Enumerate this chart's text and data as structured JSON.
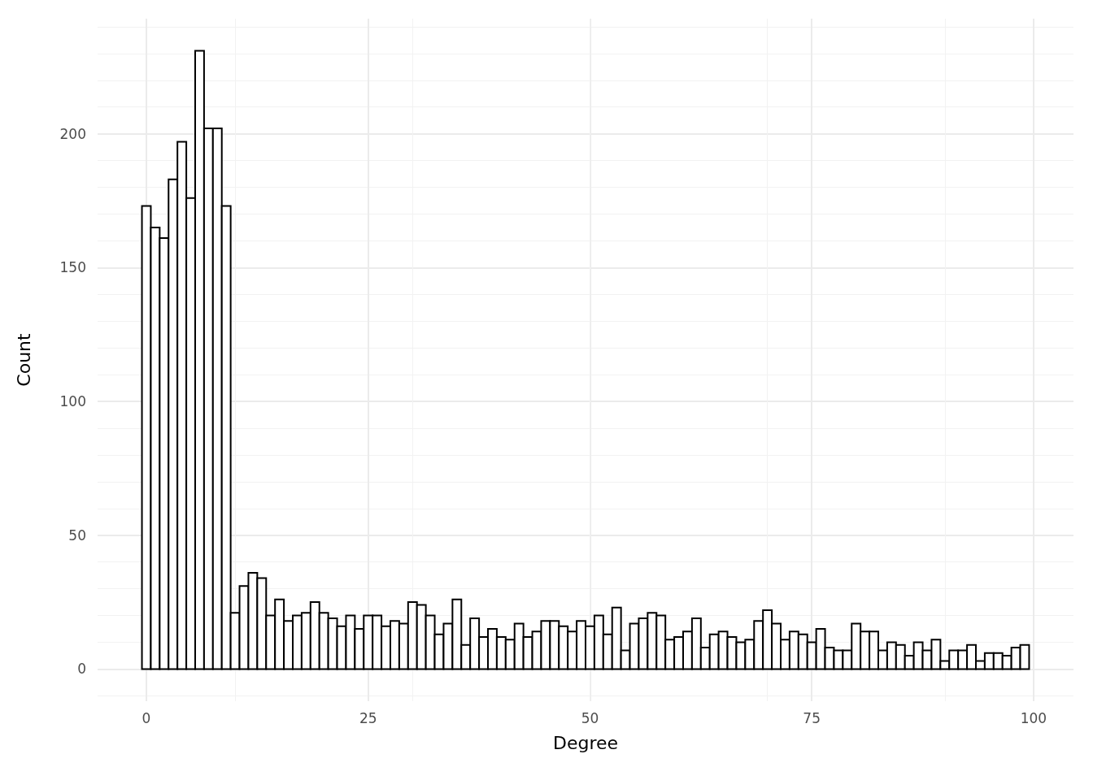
{
  "chart_data": {
    "type": "histogram",
    "xlabel": "Degree",
    "ylabel": "Count",
    "bins": [
      -0.5,
      0.5,
      1.5,
      2.5,
      3.5,
      4.5,
      5.5,
      6.5,
      7.5,
      8.5,
      9.5,
      10.5,
      11.5,
      12.5,
      13.5,
      14.5,
      15.5,
      16.5,
      17.5,
      18.5,
      19.5,
      20.5,
      21.5,
      22.5,
      23.5,
      24.5,
      25.5,
      26.5,
      27.5,
      28.5,
      29.5,
      30.5,
      31.5,
      32.5,
      33.5,
      34.5,
      35.5,
      36.5,
      37.5,
      38.5,
      39.5,
      40.5,
      41.5,
      42.5,
      43.5,
      44.5,
      45.5,
      46.5,
      47.5,
      48.5,
      49.5,
      50.5,
      51.5,
      52.5,
      53.5,
      54.5,
      55.5,
      56.5,
      57.5,
      58.5,
      59.5,
      60.5,
      61.5,
      62.5,
      63.5,
      64.5,
      65.5,
      66.5,
      67.5,
      68.5,
      69.5,
      70.5,
      71.5,
      72.5,
      73.5,
      74.5,
      75.5,
      76.5,
      77.5,
      78.5,
      79.5,
      80.5,
      81.5,
      82.5,
      83.5,
      84.5,
      85.5,
      86.5,
      87.5,
      88.5,
      89.5,
      90.5,
      91.5,
      92.5,
      93.5,
      94.5,
      95.5,
      96.5,
      97.5,
      98.5,
      99.5
    ],
    "values": [
      173,
      165,
      161,
      183,
      197,
      176,
      231,
      202,
      202,
      173,
      21,
      31,
      36,
      34,
      20,
      26,
      18,
      20,
      21,
      25,
      21,
      19,
      16,
      20,
      15,
      20,
      20,
      16,
      18,
      17,
      25,
      24,
      20,
      13,
      17,
      26,
      9,
      19,
      12,
      15,
      12,
      11,
      17,
      12,
      14,
      18,
      18,
      16,
      14,
      18,
      16,
      20,
      13,
      23,
      7,
      17,
      19,
      21,
      20,
      11,
      12,
      14,
      19,
      8,
      13,
      14,
      12,
      10,
      11,
      18,
      22,
      17,
      11,
      14,
      13,
      10,
      15,
      8,
      7,
      7,
      17,
      14,
      14,
      7,
      10,
      9,
      5,
      10,
      7,
      11,
      3,
      7,
      7,
      9,
      3,
      6,
      6,
      5,
      8,
      9
    ],
    "color": "#ffffff",
    "xlim": [
      -5.5,
      104.5
    ],
    "xticks": [
      0,
      25,
      50,
      75,
      100
    ],
    "ylim": [
      -12,
      243
    ],
    "yticks": [
      0,
      50,
      100,
      150,
      200
    ],
    "grid": true
  }
}
